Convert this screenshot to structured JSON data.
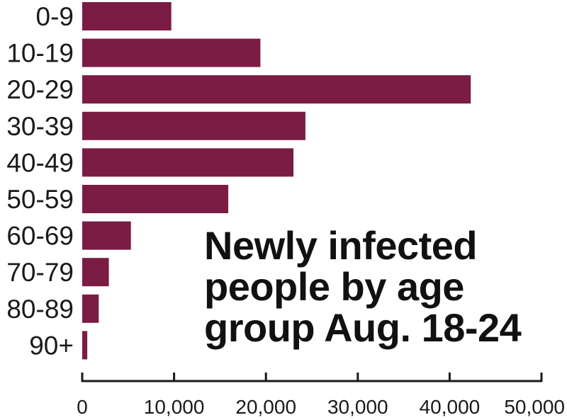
{
  "chart_data": {
    "type": "bar",
    "orientation": "horizontal",
    "title_lines": [
      "Newly infected",
      "people by age",
      "group Aug. 18-24"
    ],
    "categories": [
      "0-9",
      "10-19",
      "20-29",
      "30-39",
      "40-49",
      "50-59",
      "60-69",
      "70-79",
      "80-89",
      "90+"
    ],
    "values": [
      9700,
      19400,
      42300,
      24300,
      23000,
      15900,
      5300,
      2900,
      1800,
      550
    ],
    "xlim": [
      0,
      50000
    ],
    "xticks": [
      0,
      10000,
      20000,
      30000,
      40000,
      50000
    ],
    "xtick_labels": [
      "0",
      "10,000",
      "20,000",
      "30,000",
      "40,000",
      "50,000"
    ],
    "xlabel": "",
    "ylabel": "",
    "grid": false,
    "legend": "none",
    "bar_color": "#7a1c44"
  }
}
